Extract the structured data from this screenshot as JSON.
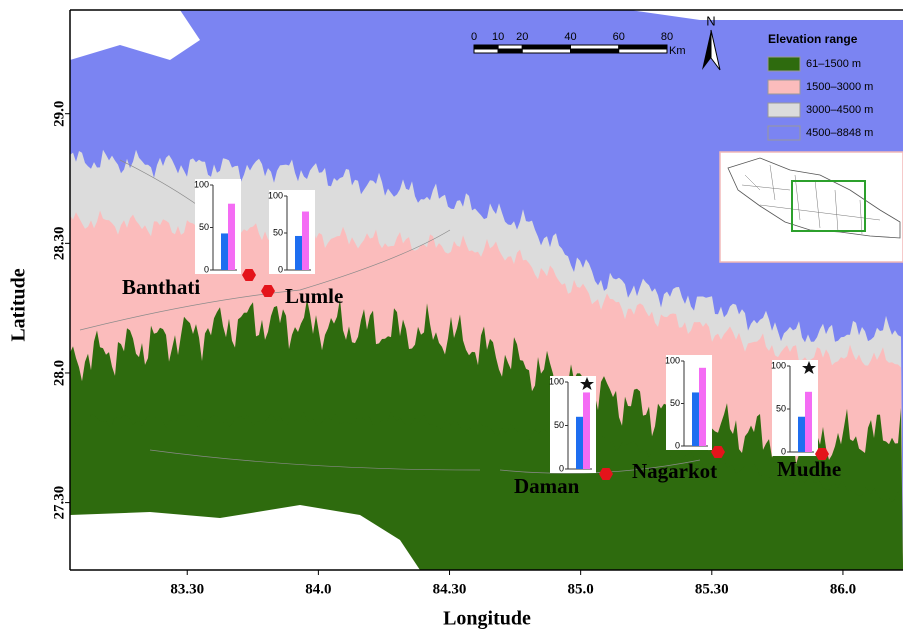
{
  "map": {
    "x_label": "Longitude",
    "y_label": "Latitude",
    "xlim": [
      83.053,
      86.229
    ],
    "ylim": [
      27.24,
      29.4
    ],
    "xticks": [
      {
        "value": 83.5,
        "label": "83.30"
      },
      {
        "value": 84,
        "label": "84.0"
      },
      {
        "value": 84.5,
        "label": "84.30"
      },
      {
        "value": 85,
        "label": "85.0"
      },
      {
        "value": 85.5,
        "label": "85.30"
      },
      {
        "value": 86,
        "label": "86.0"
      }
    ],
    "yticks": [
      {
        "value": 27.5,
        "label": "27.30"
      },
      {
        "value": 28,
        "label": "28.0"
      },
      {
        "value": 28.5,
        "label": "28.30"
      },
      {
        "value": 29,
        "label": "29.0"
      }
    ]
  },
  "scale_bar": {
    "ticks": [
      0,
      10,
      20,
      40,
      60,
      80
    ],
    "unit": "Km"
  },
  "north": "N",
  "legend": {
    "title": "Elevation range",
    "items": [
      {
        "label": "61–1500 m",
        "color": "#2e6b0e"
      },
      {
        "label": "1500–3000 m",
        "color": "#fbbcbc"
      },
      {
        "label": "3000–4500 m",
        "color": "#dcdcdc"
      },
      {
        "label": "4500–8848 m",
        "color": "#7b84f2"
      }
    ]
  },
  "mini_axis": {
    "ylim": [
      0,
      100
    ],
    "ticks": [
      0,
      50,
      100
    ]
  },
  "bar_colors": [
    "#1e6ef0",
    "#f46cf4"
  ],
  "sites": [
    {
      "name": "Banthati",
      "values": [
        43,
        78
      ],
      "star": false
    },
    {
      "name": "Lumle",
      "values": [
        46,
        79
      ],
      "star": false
    },
    {
      "name": "Daman",
      "values": [
        60,
        88
      ],
      "star": true
    },
    {
      "name": "Nagarkot",
      "values": [
        63,
        92
      ],
      "star": false
    },
    {
      "name": "Mudhe",
      "values": [
        41,
        70
      ],
      "star": true
    }
  ]
}
